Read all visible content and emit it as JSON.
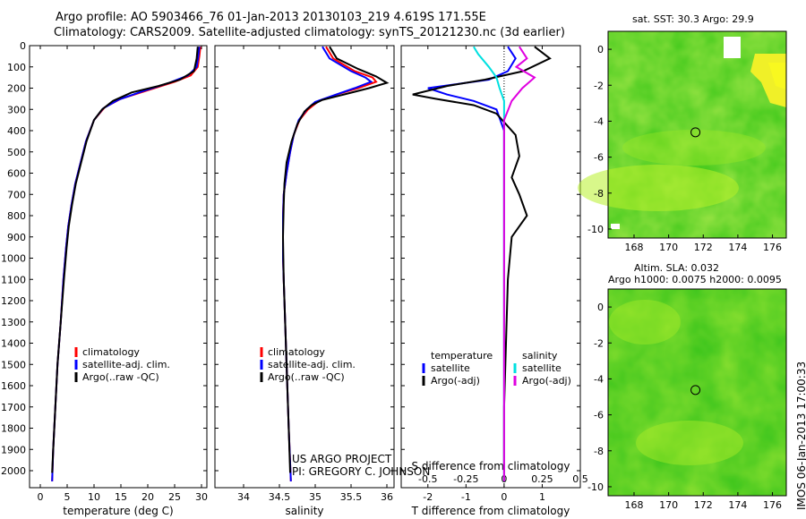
{
  "header": {
    "line1": "Argo profile: AO 5903466_76 01-Jan-2013 20130103_219 4.619S 171.55E",
    "line2": "Climatology: CARS2009. Satellite-adjusted climatology: synTS_20121230.nc (3d earlier)"
  },
  "depth_ticks": [
    0,
    100,
    200,
    300,
    400,
    500,
    600,
    700,
    800,
    900,
    1000,
    1100,
    1200,
    1300,
    1400,
    1500,
    1600,
    1700,
    1800,
    1900,
    2000
  ],
  "credits": {
    "line1": "US ARGO PROJECT",
    "line2": "PI: GREGORY C. JOHNSON"
  },
  "timestamp": "IMOS 06-Jan-2013 17:00:33",
  "chart_data": [
    {
      "id": "temperature",
      "type": "line",
      "xlabel": "temperature (deg C)",
      "ylabel": "depth",
      "xlim": [
        -2,
        31
      ],
      "ylim": [
        2080,
        0
      ],
      "xticks": [
        0,
        5,
        10,
        15,
        20,
        25,
        30
      ],
      "xtick_labels": [
        "0",
        "5",
        "10",
        "15",
        "20",
        "25",
        "30"
      ],
      "legend": [
        "climatology",
        "satellite-adj. clim.",
        "Argo(..raw -QC)"
      ],
      "series": [
        {
          "name": "climatology",
          "color": "#ff0000",
          "points": [
            [
              29.8,
              5
            ],
            [
              29.6,
              50
            ],
            [
              29.3,
              100
            ],
            [
              28,
              140
            ],
            [
              25,
              170
            ],
            [
              20,
              210
            ],
            [
              15,
              250
            ],
            [
              12,
              290
            ],
            [
              10,
              350
            ],
            [
              8.5,
              450
            ],
            [
              7.5,
              550
            ],
            [
              6.5,
              650
            ],
            [
              5.8,
              750
            ],
            [
              5.2,
              850
            ],
            [
              4.8,
              950
            ],
            [
              4.3,
              1100
            ],
            [
              3.8,
              1300
            ],
            [
              3.2,
              1500
            ],
            [
              2.8,
              1700
            ],
            [
              2.4,
              1900
            ],
            [
              2.2,
              2050
            ]
          ]
        },
        {
          "name": "satellite-adj. clim.",
          "color": "#0000ff",
          "points": [
            [
              29.6,
              5
            ],
            [
              29.4,
              50
            ],
            [
              29.1,
              100
            ],
            [
              27.5,
              140
            ],
            [
              24,
              175
            ],
            [
              19,
              215
            ],
            [
              14.5,
              255
            ],
            [
              11.7,
              295
            ],
            [
              10,
              350
            ],
            [
              8.5,
              450
            ],
            [
              7.5,
              550
            ],
            [
              6.5,
              650
            ],
            [
              5.8,
              750
            ],
            [
              5.2,
              850
            ],
            [
              4.8,
              950
            ],
            [
              4.3,
              1100
            ],
            [
              3.8,
              1300
            ],
            [
              3.2,
              1500
            ],
            [
              2.8,
              1700
            ],
            [
              2.4,
              1900
            ],
            [
              2.2,
              2050
            ]
          ]
        },
        {
          "name": "Argo(..raw -QC)",
          "color": "#000000",
          "points": [
            [
              29.3,
              5
            ],
            [
              29.1,
              60
            ],
            [
              28.6,
              120
            ],
            [
              26,
              160
            ],
            [
              22,
              190
            ],
            [
              17,
              220
            ],
            [
              13.5,
              260
            ],
            [
              11.5,
              300
            ],
            [
              10,
              350
            ],
            [
              8.6,
              450
            ],
            [
              7.6,
              550
            ],
            [
              6.6,
              650
            ],
            [
              5.9,
              750
            ],
            [
              5.3,
              850
            ],
            [
              4.9,
              950
            ],
            [
              4.4,
              1100
            ],
            [
              3.8,
              1300
            ],
            [
              3.2,
              1500
            ],
            [
              2.8,
              1700
            ],
            [
              2.4,
              1900
            ],
            [
              2.2,
              2010
            ]
          ]
        }
      ]
    },
    {
      "id": "salinity",
      "type": "line",
      "xlabel": "salinity",
      "ylabel": "depth",
      "xlim": [
        33.6,
        36.1
      ],
      "ylim": [
        2080,
        0
      ],
      "xticks": [
        34,
        34.5,
        35,
        35.5,
        36
      ],
      "xtick_labels": [
        "34",
        "34.5",
        "35",
        "35.5",
        "36"
      ],
      "legend": [
        "climatology",
        "satellite-adj. clim.",
        "Argo(..raw -QC)"
      ],
      "series": [
        {
          "name": "climatology",
          "color": "#ff0000",
          "points": [
            [
              35.15,
              5
            ],
            [
              35.25,
              60
            ],
            [
              35.55,
              120
            ],
            [
              35.8,
              150
            ],
            [
              35.85,
              170
            ],
            [
              35.6,
              200
            ],
            [
              35.3,
              230
            ],
            [
              35.05,
              260
            ],
            [
              34.9,
              300
            ],
            [
              34.78,
              350
            ],
            [
              34.7,
              420
            ],
            [
              34.65,
              500
            ],
            [
              34.6,
              600
            ],
            [
              34.56,
              700
            ],
            [
              34.55,
              800
            ],
            [
              34.55,
              1000
            ],
            [
              34.57,
              1200
            ],
            [
              34.6,
              1500
            ],
            [
              34.63,
              1800
            ],
            [
              34.66,
              2050
            ]
          ]
        },
        {
          "name": "satellite-adj. clim.",
          "color": "#0000ff",
          "points": [
            [
              35.1,
              5
            ],
            [
              35.2,
              60
            ],
            [
              35.5,
              120
            ],
            [
              35.7,
              150
            ],
            [
              35.78,
              170
            ],
            [
              35.55,
              200
            ],
            [
              35.25,
              235
            ],
            [
              35.0,
              265
            ],
            [
              34.88,
              300
            ],
            [
              34.77,
              350
            ],
            [
              34.7,
              420
            ],
            [
              34.65,
              500
            ],
            [
              34.6,
              600
            ],
            [
              34.56,
              700
            ],
            [
              34.55,
              800
            ],
            [
              34.55,
              1000
            ],
            [
              34.57,
              1200
            ],
            [
              34.6,
              1500
            ],
            [
              34.63,
              1800
            ],
            [
              34.66,
              2050
            ]
          ]
        },
        {
          "name": "Argo(..raw -QC)",
          "color": "#000000",
          "points": [
            [
              35.2,
              5
            ],
            [
              35.3,
              60
            ],
            [
              35.6,
              110
            ],
            [
              35.85,
              145
            ],
            [
              36.0,
              175
            ],
            [
              35.75,
              200
            ],
            [
              35.4,
              230
            ],
            [
              35.1,
              255
            ],
            [
              34.95,
              280
            ],
            [
              34.85,
              310
            ],
            [
              34.75,
              370
            ],
            [
              34.67,
              450
            ],
            [
              34.6,
              550
            ],
            [
              34.57,
              650
            ],
            [
              34.56,
              750
            ],
            [
              34.55,
              900
            ],
            [
              34.56,
              1100
            ],
            [
              34.58,
              1300
            ],
            [
              34.6,
              1500
            ],
            [
              34.63,
              1800
            ],
            [
              34.65,
              2010
            ]
          ]
        }
      ]
    },
    {
      "id": "difference",
      "type": "line",
      "xlabel": "T difference from climatology",
      "xlabel_top": "S difference from climatology",
      "ylabel": "depth",
      "xlim": [
        -2.7,
        2.0
      ],
      "ylim": [
        2080,
        0
      ],
      "xticks": [
        -2,
        -1,
        0,
        1
      ],
      "xtick_labels": [
        "-2",
        "-1",
        "0",
        "1"
      ],
      "xticks_top": [
        -0.5,
        -0.25,
        0,
        0.25,
        0.5
      ],
      "xtick_labels_top": [
        "-0.5",
        "-0.25",
        "0",
        "0.25",
        "0.5"
      ],
      "s_scale": 4,
      "legend_headers": [
        "temperature",
        "salinity"
      ],
      "legend": [
        "satellite",
        "Argo(-adj)",
        "satellite",
        "Argo(-adj)"
      ],
      "series": [
        {
          "name": "T satellite",
          "color": "#0000ff",
          "points": [
            [
              0.1,
              5
            ],
            [
              0.3,
              60
            ],
            [
              0.1,
              120
            ],
            [
              -0.4,
              160
            ],
            [
              -1.2,
              180
            ],
            [
              -2.0,
              200
            ],
            [
              -1.5,
              230
            ],
            [
              -0.8,
              260
            ],
            [
              -0.2,
              300
            ],
            [
              0,
              400
            ],
            [
              0,
              600
            ],
            [
              0,
              1000
            ],
            [
              0,
              1500
            ],
            [
              0,
              2050
            ]
          ]
        },
        {
          "name": "T Argo(-adj)",
          "color": "#000000",
          "points": [
            [
              0.8,
              5
            ],
            [
              1.2,
              60
            ],
            [
              0.5,
              120
            ],
            [
              -0.5,
              160
            ],
            [
              -1.5,
              190
            ],
            [
              -2.4,
              230
            ],
            [
              -1.8,
              250
            ],
            [
              -0.8,
              280
            ],
            [
              -0.2,
              320
            ],
            [
              0.3,
              420
            ],
            [
              0.4,
              520
            ],
            [
              0.2,
              620
            ],
            [
              0.4,
              700
            ],
            [
              0.6,
              800
            ],
            [
              0.2,
              900
            ],
            [
              0.1,
              1100
            ],
            [
              0.05,
              1400
            ],
            [
              0,
              1700
            ],
            [
              0,
              2000
            ]
          ]
        },
        {
          "name": "S satellite",
          "color": "#00e0e0",
          "points": [
            [
              -0.2,
              5
            ],
            [
              -0.17,
              40
            ],
            [
              -0.1,
              100
            ],
            [
              -0.05,
              150
            ],
            [
              -0.03,
              200
            ],
            [
              0,
              260
            ],
            [
              0,
              350
            ],
            [
              0,
              500
            ],
            [
              0,
              700
            ],
            [
              0,
              1000
            ],
            [
              0,
              1500
            ],
            [
              0,
              2050
            ]
          ]
        },
        {
          "name": "S Argo(-adj)",
          "color": "#e000e0",
          "points": [
            [
              0.1,
              5
            ],
            [
              0.15,
              60
            ],
            [
              0.08,
              100
            ],
            [
              0.2,
              150
            ],
            [
              0.12,
              200
            ],
            [
              0.05,
              260
            ],
            [
              0,
              350
            ],
            [
              0,
              500
            ],
            [
              0,
              1000
            ],
            [
              0,
              2050
            ]
          ]
        }
      ]
    },
    {
      "id": "sst_map",
      "type": "heatmap",
      "title": "sat. SST: 30.3  Argo: 29.9",
      "xlim": [
        166.5,
        176.8
      ],
      "ylim": [
        -10.5,
        1.0
      ],
      "xticks": [
        168,
        170,
        172,
        174,
        176
      ],
      "xtick_labels": [
        "168",
        "170",
        "172",
        "174",
        "176"
      ],
      "yticks": [
        0,
        -2,
        -4,
        -6,
        -8,
        -10
      ],
      "ytick_labels": [
        "0",
        "-2",
        "-4",
        "-6",
        "-8",
        "-10"
      ],
      "marker": {
        "lon": 171.55,
        "lat": -4.619
      }
    },
    {
      "id": "sla_map",
      "type": "heatmap",
      "title": "Altim. SLA: 0.032",
      "subtitle": "Argo h1000: 0.0075 h2000: 0.0095",
      "xlim": [
        166.5,
        176.8
      ],
      "ylim": [
        -10.5,
        1.0
      ],
      "xticks": [
        168,
        170,
        172,
        174,
        176
      ],
      "xtick_labels": [
        "168",
        "170",
        "172",
        "174",
        "176"
      ],
      "yticks": [
        0,
        -2,
        -4,
        -6,
        -8,
        -10
      ],
      "ytick_labels": [
        "0",
        "-2",
        "-4",
        "-6",
        "-8",
        "-10"
      ],
      "marker": {
        "lon": 171.55,
        "lat": -4.619
      }
    }
  ]
}
